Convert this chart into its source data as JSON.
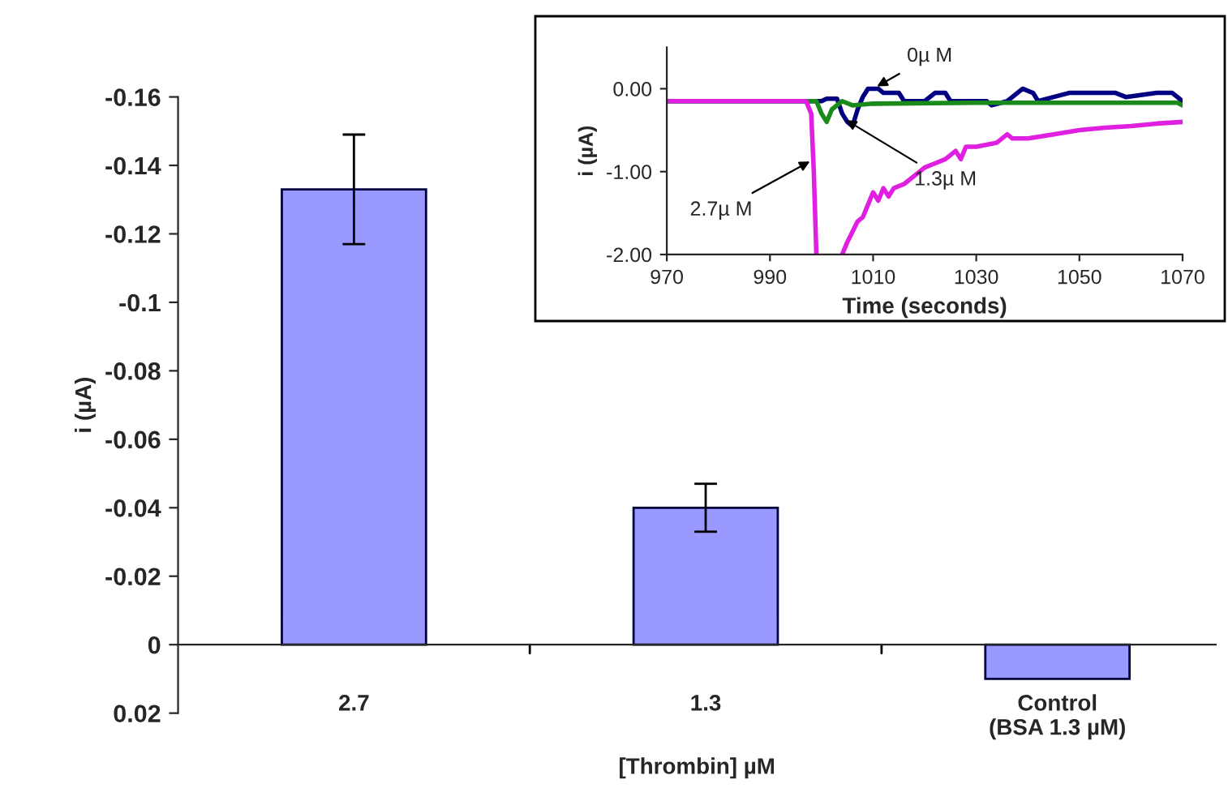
{
  "chart_data": [
    {
      "type": "bar",
      "xlabel": "[Thrombin] µM",
      "ylabel": "i (µA)",
      "categories": [
        "2.7",
        "1.3",
        "Control\n(BSA 1.3 µM)"
      ],
      "values": [
        -0.133,
        -0.04,
        0.01
      ],
      "errors": [
        0.016,
        0.007,
        null
      ],
      "color": "#9999ff",
      "ylim": [
        0.02,
        -0.16
      ],
      "yticks": [
        -0.16,
        -0.14,
        -0.12,
        -0.1,
        -0.08,
        -0.06,
        -0.04,
        -0.02,
        0,
        0.02
      ],
      "legend": false
    },
    {
      "type": "line",
      "xlabel": "Time (seconds)",
      "ylabel": "i (µA)",
      "xlim": [
        970,
        1070
      ],
      "xticks": [
        970,
        990,
        1010,
        1030,
        1050,
        1070
      ],
      "ylim": [
        -2.0,
        0.5
      ],
      "yticks": [
        {
          "value": 0,
          "label": "0.00"
        },
        {
          "value": -1,
          "label": "-1.00"
        },
        {
          "value": -2,
          "label": "-2.00"
        }
      ],
      "series": [
        {
          "color": "#000080",
          "x": [
            970,
            1000,
            1001,
            1003,
            1004,
            1005,
            1006,
            1007,
            1008,
            1009,
            1011,
            1012,
            1015,
            1016,
            1020,
            1022,
            1024,
            1025,
            1032,
            1033,
            1036,
            1037,
            1039,
            1041,
            1042,
            1045,
            1048,
            1052,
            1057,
            1059,
            1065,
            1068,
            1070
          ],
          "values": [
            -0.15,
            -0.15,
            -0.12,
            -0.12,
            -0.3,
            -0.4,
            -0.45,
            -0.25,
            -0.1,
            0.0,
            0.0,
            -0.05,
            -0.05,
            -0.15,
            -0.15,
            -0.05,
            -0.05,
            -0.15,
            -0.15,
            -0.2,
            -0.15,
            -0.1,
            0.0,
            -0.05,
            -0.15,
            -0.1,
            -0.05,
            -0.05,
            -0.05,
            -0.1,
            -0.05,
            -0.05,
            -0.15
          ]
        },
        {
          "color": "#1a8a1a",
          "x": [
            970,
            999,
            1000,
            1001,
            1002,
            1004,
            1006,
            1010,
            1030,
            1050,
            1069,
            1070
          ],
          "values": [
            -0.15,
            -0.15,
            -0.3,
            -0.4,
            -0.25,
            -0.15,
            -0.2,
            -0.18,
            -0.17,
            -0.17,
            -0.17,
            -0.2
          ]
        },
        {
          "color": "#e020e0",
          "x": [
            970,
            997,
            998,
            998.5,
            999,
            1001,
            1004,
            1005,
            1007,
            1008,
            1009,
            1010,
            1011,
            1012,
            1013,
            1014,
            1016,
            1018,
            1020,
            1022,
            1024,
            1026,
            1027,
            1028,
            1030,
            1034,
            1036,
            1037,
            1040,
            1045,
            1050,
            1055,
            1060,
            1065,
            1070
          ],
          "values": [
            -0.15,
            -0.15,
            -0.3,
            -1.0,
            -2.0,
            null,
            -2.0,
            -1.85,
            -1.6,
            -1.55,
            -1.4,
            -1.25,
            -1.35,
            -1.2,
            -1.3,
            -1.2,
            -1.15,
            -1.05,
            -0.95,
            -0.9,
            -0.85,
            -0.75,
            -0.85,
            -0.7,
            -0.7,
            -0.65,
            -0.55,
            -0.6,
            -0.6,
            -0.55,
            -0.5,
            -0.47,
            -0.45,
            -0.42,
            -0.4
          ]
        }
      ],
      "annotations": [
        {
          "text": "0µ M",
          "x": 1010,
          "y": 0.0
        },
        {
          "text": "1.3µ M",
          "x": 1004,
          "y": -0.35
        },
        {
          "text": "2.7µ M",
          "x": 998.5,
          "y": -0.85
        }
      ],
      "grid": false,
      "legend": false
    }
  ]
}
